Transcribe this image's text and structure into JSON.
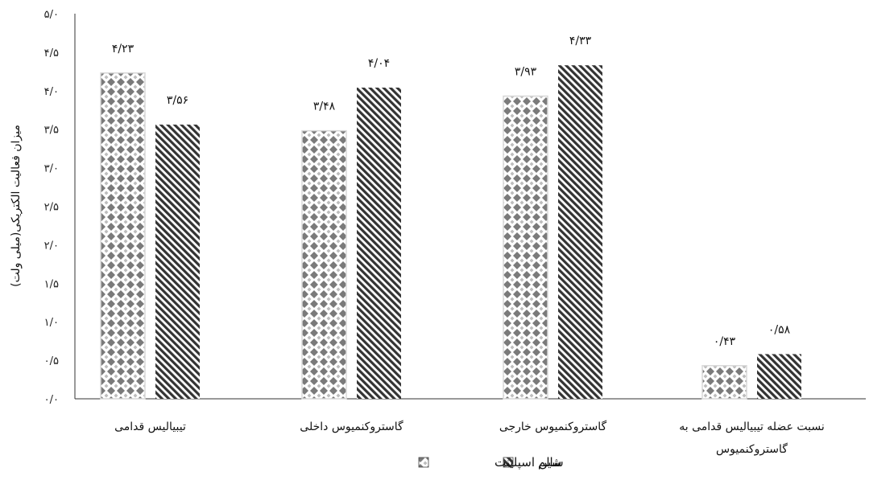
{
  "chart_data": {
    "type": "bar",
    "ylabel": "میزان فعالیت الکتریکی(میلی ولت)",
    "ylim": [
      0,
      5
    ],
    "yticks": [
      "۰/۰",
      "۰/۵",
      "۱/۰",
      "۱/۵",
      "۲/۰",
      "۲/۵",
      "۳/۰",
      "۳/۵",
      "۴/۰",
      "۴/۵",
      "۵/۰"
    ],
    "categories": [
      [
        "تیبیالیس قدامی"
      ],
      [
        "گاستروکنمیوس داخلی"
      ],
      [
        "گاستروکنمیوس خارجی"
      ],
      [
        "نسبت عضله تیبیالیس قدامی به",
        "گاستروکنمیوس"
      ]
    ],
    "series": [
      {
        "name": "شین اسپلینت",
        "pattern": "dots",
        "values": [
          4.23,
          3.48,
          3.93,
          0.43
        ],
        "labels": [
          "۴/۲۳",
          "۳/۴۸",
          "۳/۹۳",
          "۰/۴۳"
        ]
      },
      {
        "name": "سالم",
        "pattern": "stripes",
        "values": [
          3.56,
          4.04,
          4.33,
          0.58
        ],
        "labels": [
          "۳/۵۶",
          "۴/۰۴",
          "۴/۳۳",
          "۰/۵۸"
        ]
      }
    ],
    "grid": false,
    "legend": "bottom",
    "colors": {
      "dots": "#7a7a7a",
      "stripes": "#333333"
    }
  }
}
